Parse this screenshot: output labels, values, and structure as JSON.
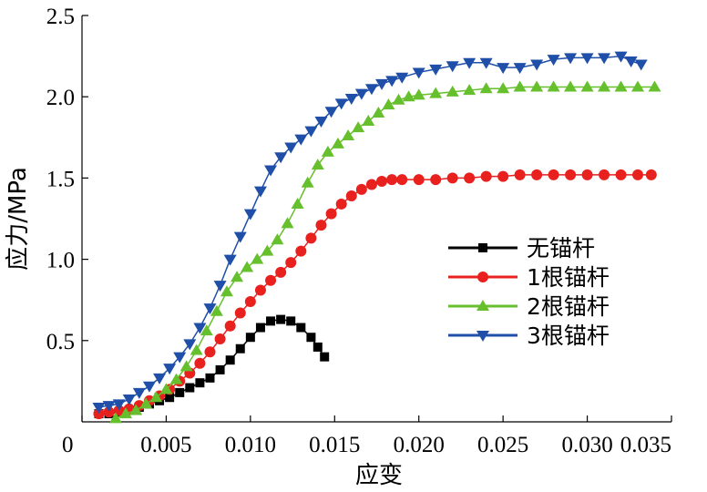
{
  "chart_data": {
    "type": "scatter",
    "title": "",
    "xlabel": "应变",
    "ylabel": "应力/MPa",
    "xlim": [
      0,
      0.035
    ],
    "ylim": [
      0,
      2.5
    ],
    "xticks": [
      0,
      0.005,
      0.01,
      0.015,
      0.02,
      0.025,
      0.03,
      0.035
    ],
    "xtick_labels": [
      "0",
      "0.005",
      "0.010",
      "0.015",
      "0.020",
      "0.025",
      "0.030",
      "0.035"
    ],
    "yticks": [
      0.5,
      1.0,
      1.5,
      2.0,
      2.5
    ],
    "ytick_labels": [
      "0.5",
      "1.0",
      "1.5",
      "2.0",
      "2.5"
    ],
    "grid": false,
    "legend_position": "right-middle",
    "series": [
      {
        "name": "无锚杆",
        "color": "#000000",
        "marker": "square",
        "x": [
          0.001,
          0.0016,
          0.0022,
          0.0028,
          0.0034,
          0.004,
          0.0046,
          0.0052,
          0.0058,
          0.0064,
          0.007,
          0.0076,
          0.0082,
          0.0088,
          0.0094,
          0.01,
          0.0106,
          0.0112,
          0.0118,
          0.0124,
          0.013,
          0.0136,
          0.014,
          0.0144
        ],
        "y": [
          0.05,
          0.05,
          0.06,
          0.07,
          0.09,
          0.11,
          0.13,
          0.15,
          0.18,
          0.21,
          0.24,
          0.27,
          0.32,
          0.38,
          0.45,
          0.52,
          0.58,
          0.62,
          0.63,
          0.62,
          0.58,
          0.52,
          0.46,
          0.4
        ]
      },
      {
        "name": "1根锚杆",
        "color": "#e8201e",
        "marker": "circle",
        "x": [
          0.001,
          0.0016,
          0.0022,
          0.0028,
          0.0034,
          0.004,
          0.0046,
          0.0052,
          0.0058,
          0.0064,
          0.007,
          0.0076,
          0.0082,
          0.0088,
          0.0094,
          0.01,
          0.0106,
          0.0112,
          0.0118,
          0.0124,
          0.013,
          0.0136,
          0.0142,
          0.0148,
          0.0154,
          0.016,
          0.0166,
          0.0172,
          0.0178,
          0.0184,
          0.019,
          0.02,
          0.021,
          0.022,
          0.023,
          0.024,
          0.025,
          0.026,
          0.027,
          0.028,
          0.029,
          0.03,
          0.031,
          0.032,
          0.033,
          0.0338
        ],
        "y": [
          0.05,
          0.06,
          0.07,
          0.08,
          0.1,
          0.13,
          0.16,
          0.2,
          0.25,
          0.3,
          0.36,
          0.43,
          0.51,
          0.59,
          0.67,
          0.74,
          0.81,
          0.87,
          0.92,
          0.98,
          1.05,
          1.13,
          1.21,
          1.28,
          1.34,
          1.39,
          1.43,
          1.46,
          1.48,
          1.49,
          1.49,
          1.49,
          1.49,
          1.5,
          1.5,
          1.51,
          1.51,
          1.52,
          1.52,
          1.52,
          1.52,
          1.52,
          1.52,
          1.52,
          1.52,
          1.52
        ]
      },
      {
        "name": "2根锚杆",
        "color": "#66bf2c",
        "marker": "triangle-up",
        "x": [
          0.002,
          0.0026,
          0.0032,
          0.0038,
          0.0044,
          0.005,
          0.0056,
          0.0062,
          0.0068,
          0.0074,
          0.008,
          0.0086,
          0.0092,
          0.0098,
          0.0104,
          0.011,
          0.0116,
          0.0122,
          0.0128,
          0.0134,
          0.014,
          0.0146,
          0.0152,
          0.0158,
          0.0164,
          0.017,
          0.0176,
          0.0182,
          0.0188,
          0.0194,
          0.02,
          0.021,
          0.022,
          0.023,
          0.024,
          0.025,
          0.026,
          0.027,
          0.028,
          0.029,
          0.03,
          0.031,
          0.032,
          0.033,
          0.034
        ],
        "y": [
          0.02,
          0.05,
          0.07,
          0.11,
          0.15,
          0.2,
          0.26,
          0.34,
          0.44,
          0.56,
          0.68,
          0.8,
          0.89,
          0.95,
          1.0,
          1.05,
          1.12,
          1.22,
          1.34,
          1.47,
          1.58,
          1.66,
          1.71,
          1.76,
          1.81,
          1.85,
          1.9,
          1.95,
          1.98,
          2.0,
          2.01,
          2.02,
          2.03,
          2.04,
          2.05,
          2.05,
          2.06,
          2.06,
          2.06,
          2.06,
          2.06,
          2.06,
          2.06,
          2.06,
          2.06
        ]
      },
      {
        "name": "3根锚杆",
        "color": "#1f4fa8",
        "marker": "triangle-down",
        "x": [
          0.001,
          0.0016,
          0.0022,
          0.0028,
          0.0034,
          0.004,
          0.0046,
          0.0052,
          0.0058,
          0.0064,
          0.007,
          0.0076,
          0.0082,
          0.0088,
          0.0094,
          0.01,
          0.0106,
          0.0112,
          0.0118,
          0.0124,
          0.013,
          0.0136,
          0.0142,
          0.0148,
          0.0154,
          0.016,
          0.0166,
          0.0172,
          0.0178,
          0.0184,
          0.019,
          0.02,
          0.021,
          0.022,
          0.023,
          0.024,
          0.025,
          0.026,
          0.027,
          0.028,
          0.029,
          0.03,
          0.031,
          0.032,
          0.0326,
          0.0332
        ],
        "y": [
          0.09,
          0.1,
          0.11,
          0.14,
          0.18,
          0.22,
          0.27,
          0.33,
          0.4,
          0.48,
          0.58,
          0.7,
          0.84,
          1.0,
          1.14,
          1.28,
          1.42,
          1.55,
          1.63,
          1.69,
          1.74,
          1.79,
          1.85,
          1.91,
          1.96,
          1.99,
          2.02,
          2.05,
          2.08,
          2.1,
          2.12,
          2.15,
          2.17,
          2.19,
          2.21,
          2.21,
          2.18,
          2.18,
          2.2,
          2.23,
          2.24,
          2.24,
          2.24,
          2.25,
          2.22,
          2.2
        ]
      }
    ]
  }
}
